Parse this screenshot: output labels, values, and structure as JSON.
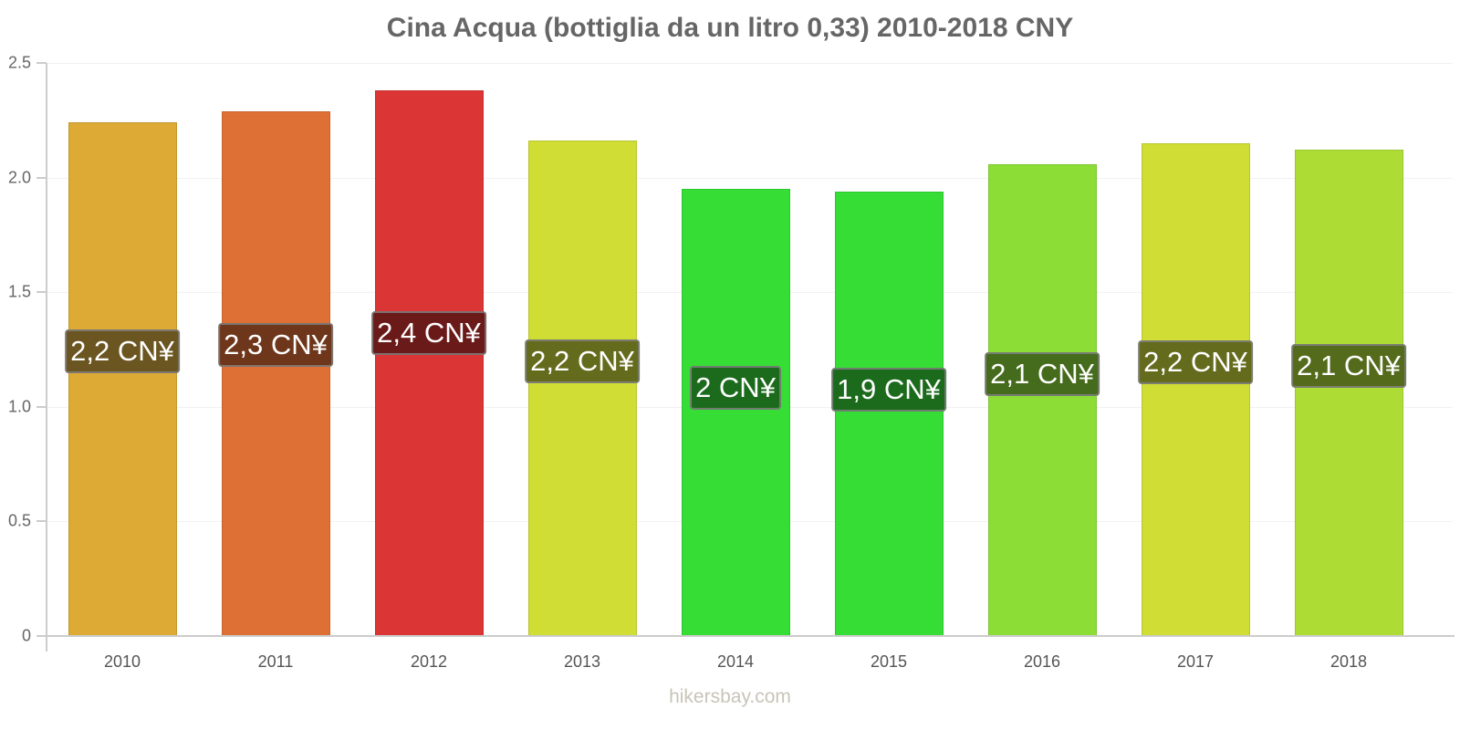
{
  "chart_data": {
    "type": "bar",
    "title": "Cina Acqua (bottiglia da un litro 0,33) 2010-2018 CNY",
    "xlabel": "",
    "ylabel": "",
    "ylim": [
      0,
      2.5
    ],
    "yticks": [
      "0",
      "0.5",
      "1.0",
      "1.5",
      "2.0",
      "2.5"
    ],
    "grid": true,
    "categories": [
      "2010",
      "2011",
      "2012",
      "2013",
      "2014",
      "2015",
      "2016",
      "2017",
      "2018"
    ],
    "values": [
      2.24,
      2.29,
      2.38,
      2.16,
      1.95,
      1.94,
      2.06,
      2.15,
      2.12
    ],
    "labels": [
      "2,2 CN¥",
      "2,3 CN¥",
      "2,4 CN¥",
      "2,2 CN¥",
      "2 CN¥",
      "1,9 CN¥",
      "2,1 CN¥",
      "2,2 CN¥",
      "2,1 CN¥"
    ],
    "bar_colors": [
      "#dcaa35",
      "#de7035",
      "#dc3535",
      "#cfdd35",
      "#35dd35",
      "#35dd35",
      "#8cdd35",
      "#cfdd35",
      "#addd35"
    ],
    "label_colors": [
      "#6b5520",
      "#6e361a",
      "#6b1a1a",
      "#656b1d",
      "#1c6b1c",
      "#1c6b1c",
      "#456b1c",
      "#656b1d",
      "#556b1c"
    ]
  },
  "watermark": "hikersbay.com"
}
